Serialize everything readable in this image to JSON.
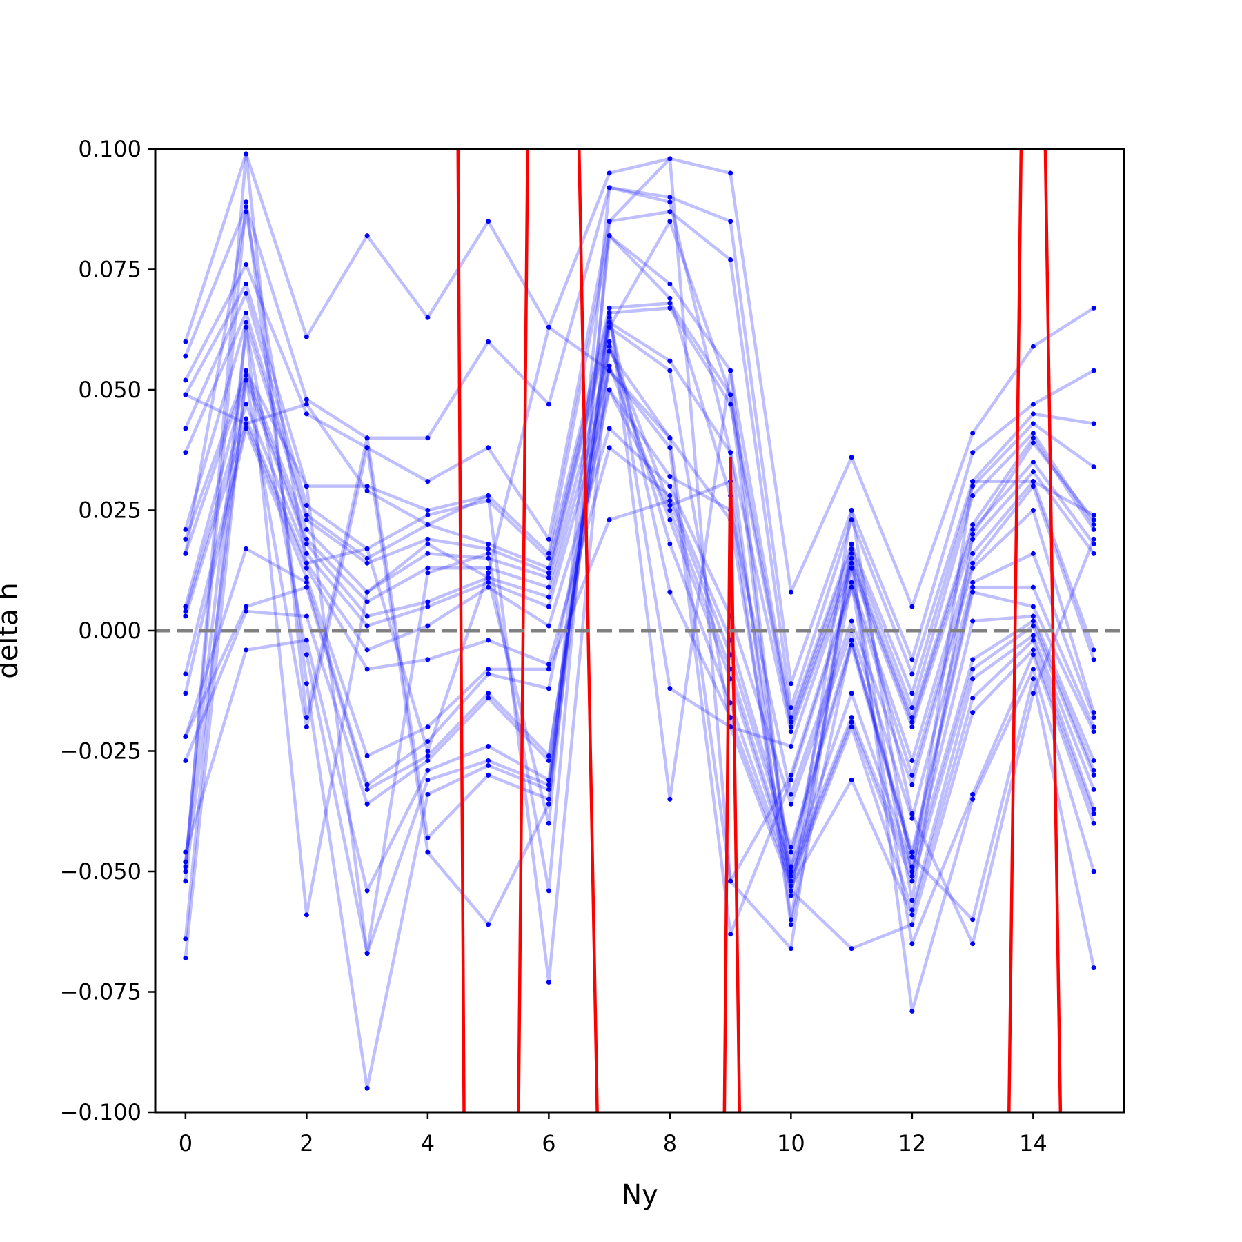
{
  "chart_data": {
    "type": "line",
    "title": "",
    "xlabel": "Ny",
    "ylabel": "delta h",
    "xlim": [
      -0.5,
      15.5
    ],
    "ylim": [
      -0.1,
      0.1
    ],
    "x_ticks": [
      0,
      2,
      4,
      6,
      8,
      10,
      12,
      14
    ],
    "x_tick_labels": [
      "0",
      "2",
      "4",
      "6",
      "8",
      "10",
      "12",
      "14"
    ],
    "y_ticks": [
      -0.1,
      -0.075,
      -0.05,
      -0.025,
      0.0,
      0.025,
      0.05,
      0.075,
      0.1
    ],
    "y_tick_labels": [
      "−0.100",
      "−0.075",
      "−0.050",
      "−0.025",
      "0.000",
      "0.025",
      "0.050",
      "0.075",
      "0.100"
    ],
    "reference_line": {
      "y": 0.0,
      "style": "dashed",
      "color": "#808080"
    },
    "series_color": "#0000ff",
    "highlight_color": "#ff0000",
    "grid": false,
    "legend": "none",
    "x": [
      0,
      1,
      2,
      3,
      4,
      5,
      6,
      7,
      8,
      9,
      10,
      11,
      12,
      13,
      14,
      15
    ],
    "series": [
      {
        "values": [
          0.06,
          0.099,
          0.061,
          0.082,
          0.065,
          0.085,
          0.063,
          0.095,
          0.098,
          0.095,
          0.008,
          0.036,
          0.005,
          0.041,
          0.059,
          0.067
        ]
      },
      {
        "values": [
          0.057,
          0.088,
          0.048,
          0.04,
          0.04,
          0.06,
          0.047,
          0.092,
          0.09,
          0.085,
          -0.011,
          0.025,
          -0.006,
          0.037,
          0.047,
          0.054
        ]
      },
      {
        "values": [
          0.052,
          0.076,
          0.045,
          0.038,
          0.031,
          0.038,
          0.019,
          0.085,
          0.087,
          0.077,
          -0.016,
          0.023,
          -0.009,
          0.031,
          0.045,
          0.043
        ]
      },
      {
        "values": [
          0.049,
          0.072,
          0.03,
          0.03,
          0.025,
          0.028,
          0.016,
          0.082,
          0.072,
          0.054,
          -0.018,
          0.018,
          -0.013,
          0.03,
          0.043,
          0.034
        ]
      },
      {
        "values": [
          0.042,
          0.07,
          0.026,
          0.017,
          0.024,
          0.027,
          0.015,
          0.067,
          0.068,
          0.049,
          -0.019,
          0.017,
          -0.016,
          0.028,
          0.041,
          0.022
        ]
      },
      {
        "values": [
          0.037,
          0.066,
          0.024,
          0.015,
          0.022,
          0.018,
          0.013,
          0.066,
          0.067,
          0.047,
          -0.02,
          0.015,
          -0.018,
          0.022,
          0.04,
          0.021
        ]
      },
      {
        "values": [
          0.021,
          0.064,
          0.023,
          0.014,
          0.019,
          0.017,
          0.012,
          0.064,
          0.056,
          0.037,
          -0.021,
          0.014,
          -0.019,
          0.021,
          0.035,
          0.018
        ]
      },
      {
        "values": [
          0.019,
          0.054,
          0.021,
          0.008,
          0.016,
          0.015,
          0.011,
          0.063,
          0.054,
          -0.02,
          -0.024,
          0.013,
          -0.02,
          0.019,
          0.033,
          0.016
        ]
      },
      {
        "values": [
          0.016,
          0.053,
          0.019,
          0.006,
          0.013,
          0.013,
          0.009,
          0.058,
          0.04,
          -0.052,
          -0.03,
          0.01,
          -0.027,
          0.016,
          0.031,
          -0.004
        ]
      },
      {
        "values": [
          0.005,
          0.052,
          0.018,
          0.003,
          0.006,
          0.011,
          0.007,
          0.054,
          0.038,
          -0.063,
          -0.031,
          0.009,
          -0.03,
          0.014,
          0.03,
          -0.006
        ]
      },
      {
        "values": [
          0.004,
          0.047,
          0.016,
          0.001,
          0.005,
          0.01,
          0.005,
          0.05,
          0.032,
          0.025,
          -0.034,
          0.002,
          -0.032,
          0.013,
          0.025,
          -0.017
        ]
      },
      {
        "values": [
          0.003,
          0.044,
          0.014,
          -0.004,
          0.001,
          0.009,
          0.001,
          0.042,
          0.03,
          0.003,
          -0.036,
          0.0,
          -0.039,
          0.01,
          0.016,
          -0.018
        ]
      },
      {
        "values": [
          -0.009,
          0.043,
          0.013,
          -0.008,
          -0.006,
          -0.002,
          -0.007,
          0.038,
          0.028,
          -0.002,
          -0.045,
          -0.002,
          -0.046,
          0.009,
          0.009,
          -0.02
        ]
      },
      {
        "values": [
          -0.013,
          0.042,
          0.011,
          -0.026,
          -0.02,
          -0.008,
          -0.008,
          0.023,
          0.027,
          -0.005,
          -0.046,
          -0.003,
          -0.047,
          0.008,
          0.005,
          -0.021
        ]
      },
      {
        "values": [
          -0.022,
          0.017,
          0.01,
          -0.032,
          -0.023,
          -0.009,
          -0.012,
          0.05,
          0.025,
          -0.008,
          -0.049,
          -0.013,
          -0.049,
          0.002,
          0.003,
          -0.027
        ]
      },
      {
        "values": [
          -0.022,
          0.005,
          0.009,
          -0.033,
          -0.026,
          -0.013,
          -0.026,
          0.055,
          0.023,
          -0.01,
          -0.05,
          -0.018,
          -0.05,
          -0.006,
          0.002,
          -0.029
        ]
      },
      {
        "values": [
          -0.027,
          0.004,
          0.003,
          -0.036,
          -0.027,
          -0.014,
          -0.027,
          0.06,
          0.018,
          -0.015,
          -0.051,
          -0.019,
          -0.052,
          -0.008,
          0.001,
          -0.03
        ]
      },
      {
        "values": [
          -0.046,
          -0.004,
          -0.002,
          -0.054,
          -0.029,
          -0.024,
          -0.031,
          0.065,
          0.008,
          -0.018,
          -0.052,
          -0.02,
          -0.058,
          -0.01,
          -0.001,
          -0.033
        ]
      },
      {
        "values": [
          -0.048,
          0.063,
          -0.005,
          -0.067,
          -0.031,
          -0.027,
          -0.032,
          0.066,
          -0.012,
          -0.02,
          -0.053,
          -0.031,
          -0.059,
          -0.014,
          -0.002,
          -0.037
        ]
      },
      {
        "values": [
          -0.049,
          0.089,
          -0.011,
          -0.095,
          -0.034,
          -0.028,
          -0.033,
          0.067,
          -0.035,
          0.054,
          -0.054,
          -0.066,
          -0.061,
          -0.017,
          -0.004,
          -0.038
        ]
      },
      {
        "values": [
          -0.05,
          0.099,
          -0.018,
          0.04,
          -0.043,
          -0.03,
          -0.035,
          0.063,
          0.085,
          0.049,
          -0.055,
          0.01,
          -0.065,
          -0.034,
          -0.005,
          -0.04
        ]
      },
      {
        "values": [
          -0.052,
          0.052,
          -0.02,
          0.038,
          -0.046,
          -0.061,
          -0.036,
          0.092,
          0.089,
          0.037,
          -0.06,
          0.016,
          -0.079,
          -0.035,
          -0.008,
          -0.05
        ]
      },
      {
        "values": [
          -0.064,
          0.063,
          -0.059,
          0.008,
          0.018,
          0.011,
          -0.04,
          0.082,
          0.069,
          0.028,
          -0.061,
          -0.002,
          -0.047,
          -0.06,
          -0.01,
          -0.07
        ]
      },
      {
        "values": [
          -0.068,
          0.054,
          0.03,
          -0.067,
          0.012,
          0.016,
          -0.054,
          0.085,
          0.098,
          -0.052,
          -0.066,
          0.018,
          -0.038,
          -0.065,
          -0.013,
          0.019
        ]
      },
      {
        "values": [
          0.049,
          0.043,
          0.047,
          0.029,
          0.022,
          0.028,
          -0.073,
          0.059,
          0.026,
          0.031,
          -0.049,
          0.013,
          -0.056,
          0.02,
          0.039,
          0.023
        ]
      },
      {
        "values": [
          0.016,
          0.087,
          0.014,
          0.017,
          -0.025,
          0.012,
          0.063,
          0.054,
          0.04,
          0.023,
          -0.055,
          0.025,
          -0.051,
          0.031,
          0.031,
          0.024
        ]
      }
    ],
    "highlight_segments": [
      [
        [
          4.5,
          0.1
        ],
        [
          4.6,
          -0.1
        ]
      ],
      [
        [
          5.5,
          -0.1
        ],
        [
          5.65,
          0.1
        ]
      ],
      [
        [
          6.5,
          0.1
        ],
        [
          6.8,
          -0.1
        ]
      ],
      [
        [
          8.9,
          -0.1
        ],
        [
          9.0,
          0.036
        ]
      ],
      [
        [
          9.0,
          0.036
        ],
        [
          9.15,
          -0.1
        ]
      ],
      [
        [
          13.6,
          -0.1
        ],
        [
          13.8,
          0.1
        ]
      ],
      [
        [
          14.2,
          0.1
        ],
        [
          14.45,
          -0.1
        ]
      ]
    ]
  }
}
